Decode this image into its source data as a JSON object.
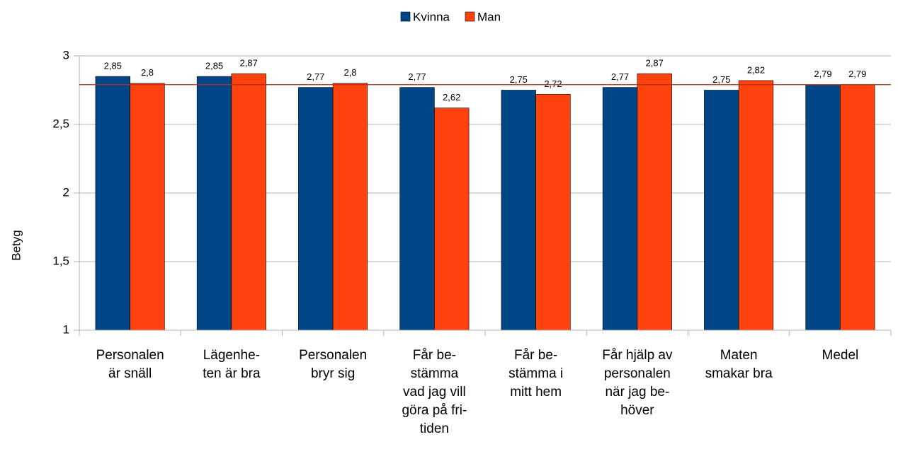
{
  "chart_data": {
    "type": "bar",
    "y_axis_label": "Betyg",
    "categories": [
      "Personalen\när snäll",
      "Lägenhe-\nten är bra",
      "Personalen\nbryr sig",
      "Får be-\nstämma\nvad jag vill\ngöra på fri-\ntiden",
      "Får be-\nstämma i\nmitt hem",
      "Får hjälp av\npersonalen\nnär jag be-\nhöver",
      "Maten\nsmakar bra",
      "Medel"
    ],
    "series": [
      {
        "name": "Kvinna",
        "color": "#004586",
        "values": [
          2.85,
          2.85,
          2.77,
          2.77,
          2.75,
          2.77,
          2.75,
          2.79
        ],
        "value_labels": [
          "2,85",
          "2,85",
          "2,77",
          "2,77",
          "2,75",
          "2,77",
          "2,75",
          "2,79"
        ]
      },
      {
        "name": "Man",
        "color": "#ff420e",
        "values": [
          2.8,
          2.87,
          2.8,
          2.62,
          2.72,
          2.87,
          2.82,
          2.79
        ],
        "value_labels": [
          "2,8",
          "2,87",
          "2,8",
          "2,62",
          "2,72",
          "2,87",
          "2,82",
          "2,79"
        ]
      }
    ],
    "reference_line": {
      "value": 2.79,
      "color": "#b3301c"
    },
    "ylim": [
      1,
      3
    ],
    "yticks": [
      1,
      {
        "value": 1.5,
        "label": "1,5"
      },
      2,
      {
        "value": 2.5,
        "label": "2,5"
      },
      3
    ],
    "grid": true,
    "legend": "top"
  }
}
